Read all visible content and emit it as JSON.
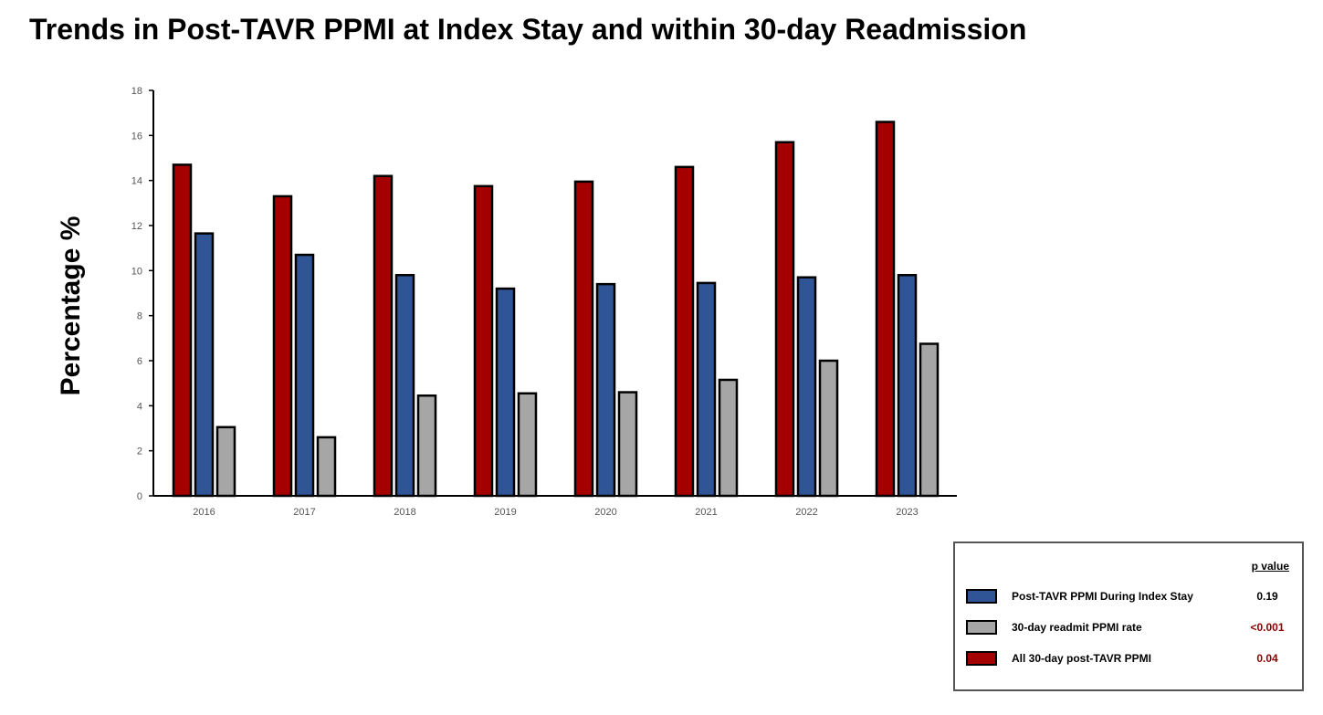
{
  "title": "Trends in Post-TAVR PPMI at Index Stay and within 30-day Readmission",
  "colors": {
    "red": "#A50000",
    "blue": "#2F5597",
    "gray": "#A6A6A6",
    "pvalue_significant": "#8B0000",
    "pvalue_normal": "#000000"
  },
  "chart_data": {
    "type": "bar",
    "ylabel": "Percentage %",
    "xlabel": "",
    "ylim": [
      0,
      18
    ],
    "yticks": [
      0,
      2,
      4,
      6,
      8,
      10,
      12,
      14,
      16,
      18
    ],
    "grid": false,
    "legend_position": "bottom-right",
    "categories": [
      "2016",
      "2017",
      "2018",
      "2019",
      "2020",
      "2021",
      "2022",
      "2023"
    ],
    "series": [
      {
        "name": "All 30-day post-TAVR PPMI",
        "color": "#A50000",
        "values": [
          14.7,
          13.3,
          14.2,
          13.75,
          13.95,
          14.6,
          15.7,
          16.6
        ]
      },
      {
        "name": "Post-TAVR PPMI During Index Stay",
        "color": "#2F5597",
        "values": [
          11.65,
          10.7,
          9.8,
          9.2,
          9.4,
          9.45,
          9.7,
          9.8
        ]
      },
      {
        "name": "30-day readmit  PPMI rate",
        "color": "#A6A6A6",
        "values": [
          3.05,
          2.6,
          4.45,
          4.55,
          4.6,
          5.15,
          6.0,
          6.75
        ]
      }
    ]
  },
  "legend": {
    "header": "p value",
    "items": [
      {
        "label": "Post-TAVR PPMI During Index Stay",
        "p_value": "0.19",
        "color": "#2F5597",
        "p_color": "#000000"
      },
      {
        "label": "30-day readmit  PPMI rate",
        "p_value": "<0.001",
        "color": "#A6A6A6",
        "p_color": "#8B0000"
      },
      {
        "label": "All 30-day post-TAVR PPMI",
        "p_value": "0.04",
        "color": "#A50000",
        "p_color": "#8B0000"
      }
    ]
  }
}
